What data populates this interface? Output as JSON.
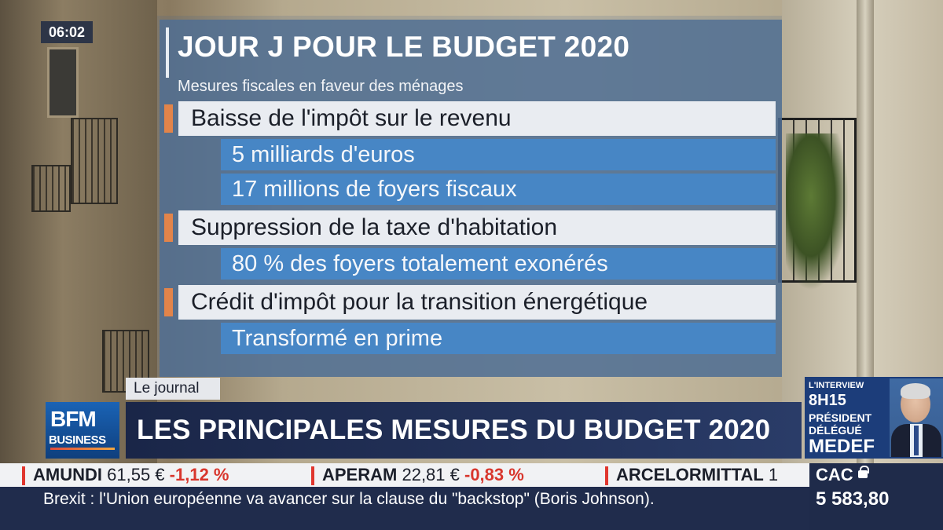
{
  "clock": "06:02",
  "panel": {
    "title": "JOUR J POUR LE BUDGET 2020",
    "subtitle": "Mesures fiscales en faveur des ménages",
    "measures": [
      {
        "label": "Baisse de l'impôt sur le revenu",
        "details": [
          "5 milliards d'euros",
          "17 millions de foyers fiscaux"
        ]
      },
      {
        "label": "Suppression de la taxe d'habitation",
        "details": [
          "80 % des foyers totalement exonérés"
        ]
      },
      {
        "label": "Crédit d'impôt pour la transition énergétique",
        "details": [
          "Transformé en prime"
        ]
      }
    ]
  },
  "tag": "Le journal",
  "logo": {
    "line1": "BFM",
    "line2": "BUSINESS"
  },
  "headline": "LES PRINCIPALES MESURES DU BUDGET 2020",
  "interview": {
    "label": "L'INTERVIEW",
    "time": "8H15",
    "role1": "PRÉSIDENT",
    "role2": "DÉLÉGUÉ",
    "org": "MEDEF"
  },
  "ticker": [
    {
      "name": "AMUNDI",
      "price": "61,55 €",
      "change": "-1,12 %"
    },
    {
      "name": "APERAM",
      "price": "22,81 €",
      "change": "-0,83 %"
    },
    {
      "name": "ARCELORMITTAL",
      "price": "1",
      "change": ""
    }
  ],
  "index": {
    "name": "CAC",
    "value": "5 583,80"
  },
  "news": "Brexit : l'Union européenne va avancer sur la clause du \"backstop\" (Boris Johnson)."
}
